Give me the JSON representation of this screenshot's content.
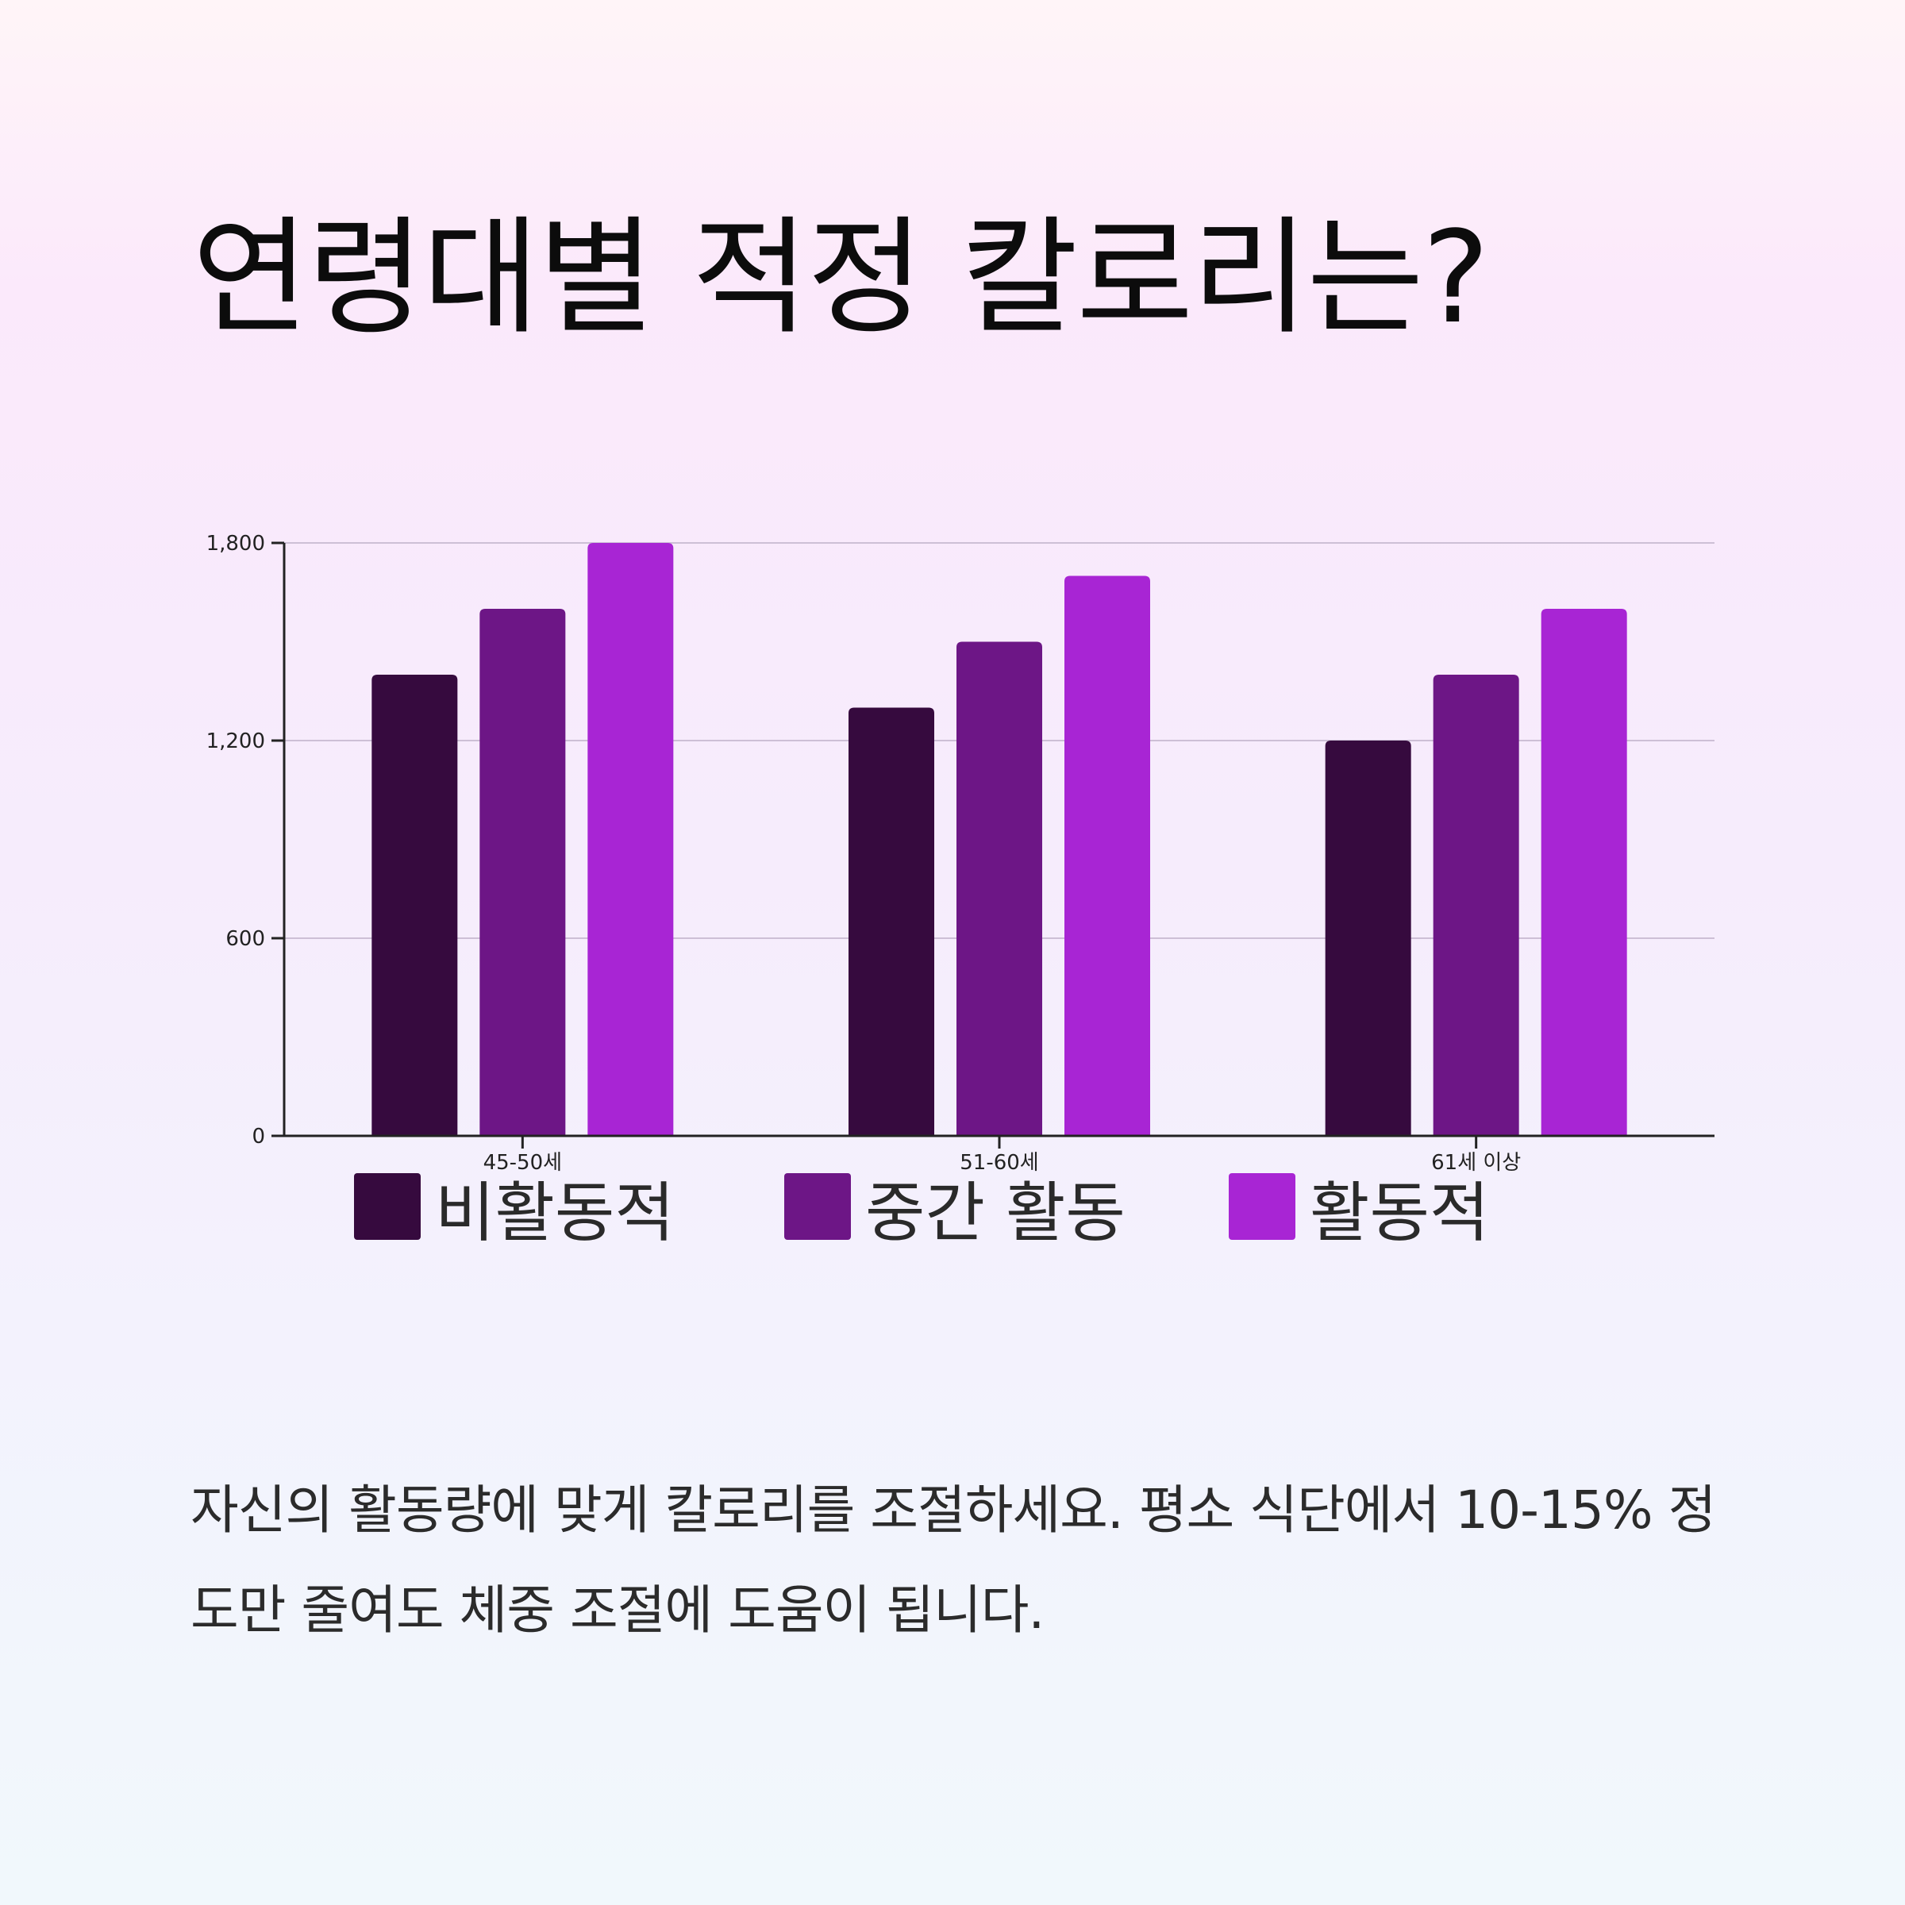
{
  "title": "연령대별 적정 칼로리는?",
  "chart_data": {
    "type": "bar",
    "categories": [
      "45-50세",
      "51-60세",
      "61세 이상"
    ],
    "series": [
      {
        "name": "비활동적",
        "color": "#360a3e",
        "values": [
          1400,
          1300,
          1200
        ]
      },
      {
        "name": "중간 활동",
        "color": "#6d1686",
        "values": [
          1600,
          1500,
          1400
        ]
      },
      {
        "name": "활동적",
        "color": "#a825d4",
        "values": [
          1800,
          1700,
          1600
        ]
      }
    ],
    "yticks": [
      0,
      600,
      1200,
      1800
    ],
    "ytick_labels": [
      "0",
      "600",
      "1,200",
      "1,800"
    ],
    "ylim": [
      0,
      1800
    ],
    "grid": true,
    "legend_position": "bottom",
    "xlabel": "",
    "ylabel": ""
  },
  "legend": {
    "items": [
      "비활동적",
      "중간 활동",
      "활동적"
    ]
  },
  "footnote": "자신의 활동량에 맞게 칼로리를 조절하세요. 평소 식단에서 10-15% 정도만 줄여도 체중 조절에 도움이 됩니다."
}
